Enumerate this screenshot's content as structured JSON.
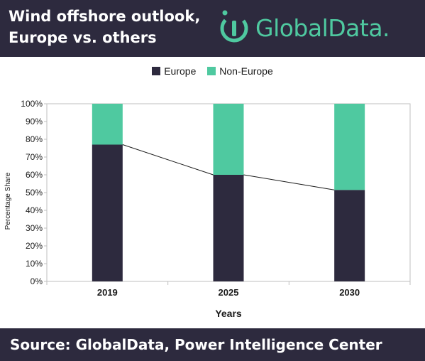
{
  "header": {
    "title_line1": "Wind offshore outlook,",
    "title_line2": "Europe vs. others",
    "logo_text": "GlobalData."
  },
  "footer": {
    "source": "Source:  GlobalData, Power Intelligence Center"
  },
  "colors": {
    "header_bg": "#2d2a3e",
    "europe": "#2d2a3e",
    "non_europe": "#4fc9a0",
    "logo": "#4fc9a0"
  },
  "chart_data": {
    "type": "bar",
    "stacked": true,
    "categories": [
      "2019",
      "2025",
      "2030"
    ],
    "series": [
      {
        "name": "Europe",
        "values": [
          77,
          60,
          51.5
        ]
      },
      {
        "name": "Non-Europe",
        "values": [
          23,
          40,
          48.5
        ]
      }
    ],
    "trend_line": {
      "series": "Europe",
      "values": [
        77,
        60,
        51.5
      ]
    },
    "xlabel": "Years",
    "ylabel": "Percentage Share",
    "ylim": [
      0,
      100
    ],
    "yticks": [
      "0%",
      "10%",
      "20%",
      "30%",
      "40%",
      "50%",
      "60%",
      "70%",
      "80%",
      "90%",
      "100%"
    ],
    "legend_position": "top-center",
    "grid": false
  }
}
